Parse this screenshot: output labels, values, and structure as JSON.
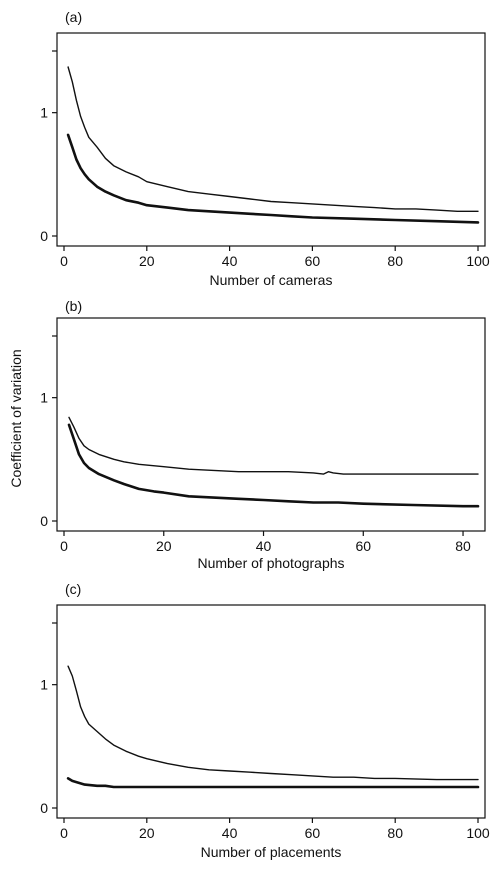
{
  "chart_data": [
    {
      "type": "line",
      "panel_label": "(a)",
      "xlabel": "Number of cameras",
      "ylabel": "",
      "xlim": [
        0,
        100
      ],
      "ylim": [
        0,
        1.5
      ],
      "x_ticks": [
        0,
        20,
        40,
        60,
        80,
        100
      ],
      "y_ticks": [
        0,
        1
      ],
      "y_minor_tick": 1.5,
      "grid": false,
      "series": [
        {
          "style": "thin",
          "points": [
            [
              1,
              1.37
            ],
            [
              2,
              1.25
            ],
            [
              3,
              1.1
            ],
            [
              4,
              0.97
            ],
            [
              5,
              0.88
            ],
            [
              6,
              0.8
            ],
            [
              8,
              0.72
            ],
            [
              10,
              0.63
            ],
            [
              12,
              0.57
            ],
            [
              15,
              0.52
            ],
            [
              18,
              0.48
            ],
            [
              20,
              0.44
            ],
            [
              25,
              0.4
            ],
            [
              30,
              0.36
            ],
            [
              35,
              0.34
            ],
            [
              40,
              0.32
            ],
            [
              45,
              0.3
            ],
            [
              50,
              0.28
            ],
            [
              55,
              0.27
            ],
            [
              60,
              0.26
            ],
            [
              65,
              0.25
            ],
            [
              70,
              0.24
            ],
            [
              75,
              0.23
            ],
            [
              80,
              0.22
            ],
            [
              85,
              0.22
            ],
            [
              90,
              0.21
            ],
            [
              95,
              0.2
            ],
            [
              100,
              0.2
            ]
          ]
        },
        {
          "style": "thick",
          "points": [
            [
              1,
              0.82
            ],
            [
              2,
              0.72
            ],
            [
              3,
              0.62
            ],
            [
              4,
              0.55
            ],
            [
              5,
              0.5
            ],
            [
              6,
              0.46
            ],
            [
              8,
              0.4
            ],
            [
              10,
              0.36
            ],
            [
              12,
              0.33
            ],
            [
              15,
              0.29
            ],
            [
              18,
              0.27
            ],
            [
              20,
              0.25
            ],
            [
              25,
              0.23
            ],
            [
              30,
              0.21
            ],
            [
              35,
              0.2
            ],
            [
              40,
              0.19
            ],
            [
              45,
              0.18
            ],
            [
              50,
              0.17
            ],
            [
              55,
              0.16
            ],
            [
              60,
              0.15
            ],
            [
              70,
              0.14
            ],
            [
              80,
              0.13
            ],
            [
              90,
              0.12
            ],
            [
              100,
              0.11
            ]
          ]
        }
      ]
    },
    {
      "type": "line",
      "panel_label": "(b)",
      "xlabel": "Number of photographs",
      "ylabel": "Coefficient of variation",
      "xlim": [
        0,
        83
      ],
      "ylim": [
        0,
        1.5
      ],
      "x_ticks": [
        0,
        20,
        40,
        60,
        80
      ],
      "y_ticks": [
        0,
        1
      ],
      "y_minor_tick": 1.5,
      "grid": false,
      "series": [
        {
          "style": "thin",
          "points": [
            [
              1,
              0.84
            ],
            [
              2,
              0.76
            ],
            [
              3,
              0.67
            ],
            [
              4,
              0.61
            ],
            [
              5,
              0.58
            ],
            [
              7,
              0.54
            ],
            [
              10,
              0.5
            ],
            [
              12,
              0.48
            ],
            [
              15,
              0.46
            ],
            [
              20,
              0.44
            ],
            [
              25,
              0.42
            ],
            [
              30,
              0.41
            ],
            [
              35,
              0.4
            ],
            [
              40,
              0.4
            ],
            [
              45,
              0.4
            ],
            [
              50,
              0.39
            ],
            [
              52,
              0.38
            ],
            [
              53,
              0.4
            ],
            [
              54,
              0.39
            ],
            [
              56,
              0.38
            ],
            [
              60,
              0.38
            ],
            [
              70,
              0.38
            ],
            [
              80,
              0.38
            ],
            [
              83,
              0.38
            ]
          ]
        },
        {
          "style": "thick",
          "points": [
            [
              1,
              0.78
            ],
            [
              2,
              0.66
            ],
            [
              3,
              0.54
            ],
            [
              4,
              0.47
            ],
            [
              5,
              0.43
            ],
            [
              7,
              0.38
            ],
            [
              10,
              0.33
            ],
            [
              12,
              0.3
            ],
            [
              15,
              0.26
            ],
            [
              18,
              0.24
            ],
            [
              20,
              0.23
            ],
            [
              25,
              0.2
            ],
            [
              30,
              0.19
            ],
            [
              35,
              0.18
            ],
            [
              40,
              0.17
            ],
            [
              45,
              0.16
            ],
            [
              50,
              0.15
            ],
            [
              55,
              0.15
            ],
            [
              60,
              0.14
            ],
            [
              70,
              0.13
            ],
            [
              80,
              0.12
            ],
            [
              83,
              0.12
            ]
          ]
        }
      ]
    },
    {
      "type": "line",
      "panel_label": "(c)",
      "xlabel": "Number of placements",
      "ylabel": "",
      "xlim": [
        0,
        100
      ],
      "ylim": [
        0,
        1.5
      ],
      "x_ticks": [
        0,
        20,
        40,
        60,
        80,
        100
      ],
      "y_ticks": [
        0,
        1
      ],
      "y_minor_tick": 1.5,
      "grid": false,
      "series": [
        {
          "style": "thin",
          "points": [
            [
              1,
              1.15
            ],
            [
              2,
              1.07
            ],
            [
              3,
              0.95
            ],
            [
              4,
              0.82
            ],
            [
              5,
              0.74
            ],
            [
              6,
              0.68
            ],
            [
              8,
              0.62
            ],
            [
              10,
              0.56
            ],
            [
              12,
              0.51
            ],
            [
              15,
              0.46
            ],
            [
              18,
              0.42
            ],
            [
              20,
              0.4
            ],
            [
              25,
              0.36
            ],
            [
              30,
              0.33
            ],
            [
              35,
              0.31
            ],
            [
              40,
              0.3
            ],
            [
              45,
              0.29
            ],
            [
              50,
              0.28
            ],
            [
              55,
              0.27
            ],
            [
              60,
              0.26
            ],
            [
              65,
              0.25
            ],
            [
              70,
              0.25
            ],
            [
              75,
              0.24
            ],
            [
              80,
              0.24
            ],
            [
              90,
              0.23
            ],
            [
              100,
              0.23
            ]
          ]
        },
        {
          "style": "thick",
          "points": [
            [
              1,
              0.24
            ],
            [
              2,
              0.22
            ],
            [
              3,
              0.21
            ],
            [
              5,
              0.19
            ],
            [
              8,
              0.18
            ],
            [
              10,
              0.18
            ],
            [
              12,
              0.17
            ],
            [
              20,
              0.17
            ],
            [
              40,
              0.17
            ],
            [
              60,
              0.17
            ],
            [
              80,
              0.17
            ],
            [
              100,
              0.17
            ]
          ]
        }
      ]
    }
  ]
}
